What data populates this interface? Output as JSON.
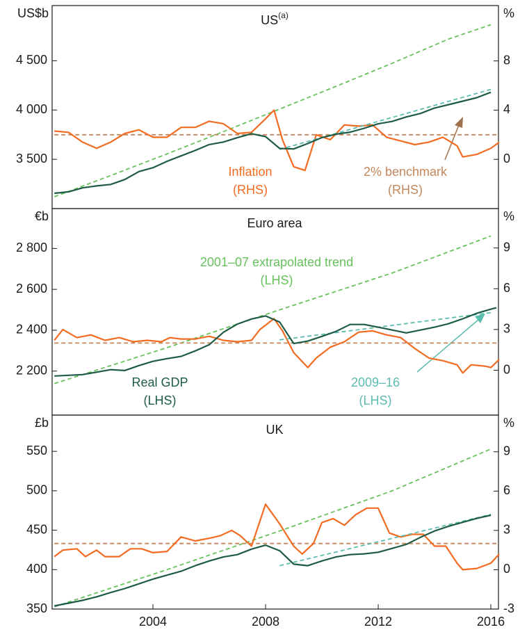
{
  "chart_data": [
    {
      "type": "line",
      "title": "US",
      "title_note": "(a)",
      "y_label": "US$b",
      "y2_label": "%",
      "xlim": [
        2000.42,
        2016.27
      ],
      "ylim": [
        3000,
        5060
      ],
      "y2lim": [
        -4,
        12.5
      ],
      "yticks": [
        {
          "value": 3500,
          "label": "3 500"
        },
        {
          "value": 4000,
          "label": "4 000"
        },
        {
          "value": 4500,
          "label": "4 500"
        }
      ],
      "y2ticks": [
        0,
        4,
        8
      ],
      "series": [
        {
          "color": "#66c25a",
          "dash": true,
          "axis": "y",
          "x": [
            2000.5,
            2002.5,
            2004.5,
            2006.5,
            2008.5,
            2010.5,
            2012.5,
            2014.5,
            2016.0
          ],
          "values": [
            3120,
            3335,
            3555,
            3780,
            4010,
            4240,
            4475,
            4720,
            4866
          ]
        },
        {
          "color": "#c4875c",
          "dash": true,
          "axis": "y2",
          "x": [
            2000.5,
            2016.2
          ],
          "values": [
            2,
            2
          ]
        },
        {
          "color": "#f26b21",
          "dash": false,
          "axis": "y2",
          "x": [
            2000.5,
            2001.0,
            2001.5,
            2002.0,
            2002.5,
            2003.0,
            2003.5,
            2004.0,
            2004.5,
            2005.0,
            2005.5,
            2006.0,
            2006.5,
            2007.0,
            2007.5,
            2008.0,
            2008.3,
            2008.6,
            2009.0,
            2009.4,
            2009.8,
            2010.3,
            2010.8,
            2011.3,
            2011.8,
            2012.3,
            2012.8,
            2013.3,
            2013.8,
            2014.3,
            2014.8,
            2015.0,
            2015.5,
            2016.0,
            2016.3
          ],
          "values": [
            2.3,
            2.2,
            1.4,
            0.9,
            1.4,
            2.1,
            2.4,
            1.8,
            1.8,
            2.6,
            2.6,
            3.1,
            2.9,
            2.1,
            2.2,
            3.3,
            4.0,
            1.6,
            -0.6,
            -0.9,
            2.0,
            1.6,
            2.8,
            2.7,
            2.8,
            1.8,
            1.5,
            1.2,
            1.4,
            1.8,
            1.1,
            0.2,
            0.4,
            0.9,
            1.4
          ]
        },
        {
          "color": "#5bbcb0",
          "dash": true,
          "axis": "y",
          "x": [
            2008.5,
            2016.0
          ],
          "values": [
            3600,
            4210
          ]
        },
        {
          "color": "#1d5b45",
          "dash": false,
          "axis": "y",
          "x": [
            2000.5,
            2001.0,
            2001.5,
            2002.0,
            2002.5,
            2003.0,
            2003.5,
            2004.0,
            2004.5,
            2005.0,
            2005.5,
            2006.0,
            2006.5,
            2007.0,
            2007.5,
            2008.0,
            2008.5,
            2009.0,
            2009.5,
            2010.0,
            2010.5,
            2011.0,
            2011.5,
            2012.0,
            2012.5,
            2013.0,
            2013.5,
            2014.0,
            2014.5,
            2015.0,
            2015.5,
            2016.0
          ],
          "values": [
            3155,
            3170,
            3210,
            3230,
            3245,
            3295,
            3375,
            3415,
            3480,
            3535,
            3590,
            3650,
            3675,
            3720,
            3760,
            3730,
            3610,
            3605,
            3660,
            3720,
            3755,
            3775,
            3815,
            3860,
            3885,
            3930,
            3965,
            4020,
            4055,
            4090,
            4125,
            4180
          ]
        }
      ],
      "annotations": [
        {
          "lines": [
            "Inflation",
            "(RHS)"
          ],
          "color": "#f26b21"
        },
        {
          "lines": [
            "2% benchmark",
            "(RHS)"
          ],
          "color": "#c4875c"
        }
      ]
    },
    {
      "type": "line",
      "title": "Euro area",
      "y_label": "€b",
      "y2_label": "%",
      "xlim": [
        2000.42,
        2016.27
      ],
      "ylim": [
        1985,
        2995
      ],
      "y2lim": [
        -3.3,
        11.9
      ],
      "yticks": [
        {
          "value": 2200,
          "label": "2 200"
        },
        {
          "value": 2400,
          "label": "2 400"
        },
        {
          "value": 2600,
          "label": "2 600"
        },
        {
          "value": 2800,
          "label": "2 800"
        }
      ],
      "y2ticks": [
        0,
        3,
        6,
        9
      ],
      "series": [
        {
          "color": "#66c25a",
          "dash": true,
          "axis": "y",
          "x": [
            2000.5,
            2004.5,
            2008.5,
            2012.5,
            2016.0
          ],
          "values": [
            2139,
            2315,
            2500,
            2680,
            2861
          ]
        },
        {
          "color": "#c4875c",
          "dash": true,
          "axis": "y2",
          "x": [
            2000.5,
            2016.2
          ],
          "values": [
            2,
            2
          ]
        },
        {
          "color": "#f26b21",
          "dash": false,
          "axis": "y2",
          "x": [
            2000.5,
            2000.8,
            2001.3,
            2001.8,
            2002.3,
            2002.8,
            2003.3,
            2003.8,
            2004.3,
            2004.6,
            2005.0,
            2005.5,
            2006.0,
            2006.5,
            2007.0,
            2007.5,
            2007.8,
            2008.3,
            2008.6,
            2009.0,
            2009.5,
            2009.8,
            2010.3,
            2010.8,
            2011.3,
            2011.8,
            2012.3,
            2012.8,
            2013.3,
            2013.8,
            2014.3,
            2014.8,
            2015.0,
            2015.3,
            2015.8,
            2016.0,
            2016.3
          ],
          "values": [
            2.2,
            3.0,
            2.4,
            2.6,
            2.2,
            2.4,
            2.1,
            2.2,
            2.1,
            2.4,
            2.3,
            2.3,
            2.5,
            2.2,
            2.1,
            2.2,
            3.0,
            3.8,
            2.9,
            1.3,
            0.2,
            0.9,
            1.7,
            2.1,
            2.8,
            2.9,
            2.6,
            2.4,
            1.6,
            0.9,
            0.7,
            0.4,
            -0.2,
            0.4,
            0.3,
            0.2,
            0.8
          ]
        },
        {
          "color": "#5bbcb0",
          "dash": true,
          "axis": "y",
          "x": [
            2008.5,
            2016.0
          ],
          "values": [
            2353,
            2486
          ]
        },
        {
          "color": "#1d5b45",
          "dash": false,
          "axis": "y",
          "x": [
            2000.5,
            2001.5,
            2002.5,
            2003.0,
            2003.5,
            2004.0,
            2004.5,
            2005.0,
            2005.5,
            2006.0,
            2006.5,
            2007.0,
            2007.5,
            2008.0,
            2008.5,
            2009.0,
            2009.5,
            2010.0,
            2010.5,
            2011.0,
            2011.5,
            2012.0,
            2012.5,
            2013.0,
            2013.5,
            2014.0,
            2014.5,
            2015.0,
            2015.5,
            2016.0,
            2016.2
          ],
          "values": [
            2176,
            2183,
            2207,
            2203,
            2227,
            2248,
            2261,
            2272,
            2299,
            2329,
            2390,
            2430,
            2455,
            2470,
            2440,
            2335,
            2347,
            2370,
            2394,
            2428,
            2428,
            2415,
            2401,
            2387,
            2401,
            2415,
            2432,
            2456,
            2483,
            2503,
            2510
          ]
        }
      ],
      "annotations": [
        {
          "lines": [
            "2001–07 extrapolated trend",
            "(LHS)"
          ],
          "color": "#66c25a"
        },
        {
          "lines": [
            "Real GDP",
            "(LHS)"
          ],
          "color": "#1d5b45"
        },
        {
          "lines": [
            "2009–16",
            "(LHS)"
          ],
          "color": "#5bbcb0"
        }
      ]
    },
    {
      "type": "line",
      "title": "UK",
      "y_label": "£b",
      "y2_label": "%",
      "xlim": [
        2000.42,
        2016.27
      ],
      "ylim": [
        350,
        596
      ],
      "y2lim": [
        -3,
        11.8
      ],
      "yticks": [
        350,
        400,
        450,
        500,
        550
      ],
      "y2ticks": [
        -3,
        0,
        3,
        6,
        9
      ],
      "xticks": [
        2004,
        2008,
        2012,
        2016
      ],
      "series": [
        {
          "color": "#66c25a",
          "dash": true,
          "axis": "y",
          "x": [
            2000.5,
            2004.5,
            2008.5,
            2012.5,
            2016.0
          ],
          "values": [
            353,
            400,
            449,
            500,
            553
          ]
        },
        {
          "color": "#c4875c",
          "dash": true,
          "axis": "y2",
          "x": [
            2000.5,
            2016.2
          ],
          "values": [
            2,
            2
          ]
        },
        {
          "color": "#f26b21",
          "dash": false,
          "axis": "y2",
          "x": [
            2000.5,
            2000.8,
            2001.3,
            2001.6,
            2002.0,
            2002.3,
            2002.8,
            2003.2,
            2003.6,
            2004.0,
            2004.5,
            2005.0,
            2005.5,
            2006.0,
            2006.4,
            2006.8,
            2007.1,
            2007.5,
            2008.0,
            2008.5,
            2009.0,
            2009.3,
            2009.7,
            2010.0,
            2010.4,
            2010.8,
            2011.2,
            2011.6,
            2012.0,
            2012.4,
            2012.8,
            2013.2,
            2013.6,
            2014.0,
            2014.4,
            2014.8,
            2015.0,
            2015.5,
            2016.0,
            2016.3
          ],
          "values": [
            1.0,
            1.5,
            1.6,
            1.0,
            1.5,
            1.0,
            1.0,
            1.6,
            1.6,
            1.3,
            1.4,
            2.5,
            2.2,
            2.4,
            2.6,
            3.0,
            2.6,
            1.8,
            5.0,
            3.5,
            1.8,
            1.2,
            2.0,
            3.6,
            3.9,
            3.4,
            4.2,
            4.7,
            4.7,
            2.8,
            2.5,
            2.7,
            2.7,
            1.8,
            1.8,
            0.5,
            0.0,
            0.1,
            0.5,
            1.2
          ]
        },
        {
          "color": "#5bbcb0",
          "dash": true,
          "axis": "y",
          "x": [
            2008.5,
            2016.0
          ],
          "values": [
            405,
            470
          ]
        },
        {
          "color": "#1d5b45",
          "dash": false,
          "axis": "y",
          "x": [
            2000.5,
            2001.0,
            2001.5,
            2002.0,
            2002.5,
            2003.0,
            2003.5,
            2004.0,
            2004.5,
            2005.0,
            2005.5,
            2006.0,
            2006.5,
            2007.0,
            2007.5,
            2008.0,
            2008.5,
            2009.0,
            2009.5,
            2010.0,
            2010.5,
            2011.0,
            2011.5,
            2012.0,
            2012.5,
            2013.0,
            2013.5,
            2014.0,
            2014.5,
            2015.0,
            2015.5,
            2016.0
          ],
          "values": [
            354,
            357.5,
            361,
            365.5,
            371,
            376,
            382,
            388,
            393,
            398,
            405,
            411,
            416,
            419,
            426,
            431,
            424,
            407,
            405,
            411,
            416,
            419,
            420,
            422,
            427,
            432,
            441,
            449,
            455,
            460,
            465,
            469
          ]
        }
      ]
    }
  ]
}
